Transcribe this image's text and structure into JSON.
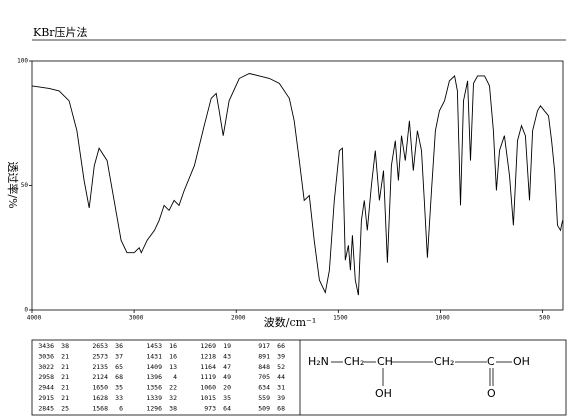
{
  "header": {
    "title": "KBr压片法"
  },
  "chart_data": {
    "type": "line",
    "xlabel": "波数/cm⁻¹",
    "ylabel": "透过率/%",
    "xlim": [
      4000,
      400
    ],
    "x_scale_break": 2000,
    "x_scale_ratio": 2,
    "xticks": [
      4000,
      3000,
      2000,
      1500,
      1000,
      500
    ],
    "ylim": [
      0,
      100
    ],
    "yticks": [
      0,
      50,
      100
    ],
    "color": "#000000",
    "x": [
      4000,
      3833,
      3735,
      3637,
      3560,
      3490,
      3440,
      3390,
      3343,
      3265,
      3196,
      3127,
      3070,
      3000,
      2950,
      2930,
      2873,
      2800,
      2755,
      2706,
      2657,
      2608,
      2560,
      2510,
      2410,
      2314,
      2245,
      2196,
      2167,
      2128,
      2070,
      1985,
      1936,
      1887,
      1838,
      1789,
      1740,
      1716,
      1691,
      1667,
      1642,
      1618,
      1593,
      1564,
      1544,
      1520,
      1495,
      1480,
      1466,
      1451,
      1441,
      1431,
      1417,
      1402,
      1387,
      1373,
      1358,
      1338,
      1319,
      1299,
      1279,
      1260,
      1240,
      1221,
      1206,
      1191,
      1172,
      1152,
      1133,
      1113,
      1093,
      1079,
      1064,
      1044,
      1025,
      1005,
      980,
      956,
      931,
      917,
      902,
      887,
      867,
      853,
      838,
      818,
      784,
      760,
      741,
      726,
      711,
      687,
      662,
      643,
      623,
      603,
      584,
      564,
      549,
      525,
      510,
      491,
      471,
      456,
      441,
      427,
      412,
      402
    ],
    "values": [
      90,
      89,
      88,
      84,
      72,
      52,
      41,
      58,
      65,
      60,
      44,
      28,
      23,
      23,
      25,
      23,
      28,
      32,
      36,
      42,
      40,
      44,
      42,
      48,
      58,
      74,
      85,
      87,
      80,
      70,
      84,
      93,
      95,
      94,
      93,
      91,
      85,
      76,
      60,
      44,
      46,
      28,
      12,
      7,
      16,
      44,
      64,
      65,
      20,
      26,
      16,
      30,
      12,
      6,
      36,
      44,
      32,
      50,
      64,
      44,
      56,
      19,
      58,
      68,
      52,
      70,
      60,
      76,
      56,
      72,
      64,
      44,
      21,
      48,
      72,
      80,
      84,
      92,
      94,
      88,
      42,
      84,
      92,
      60,
      91,
      94,
      94,
      90,
      72,
      48,
      64,
      70,
      54,
      34,
      68,
      74,
      70,
      44,
      72,
      80,
      82,
      80,
      78,
      68,
      56,
      34,
      32,
      36
    ]
  },
  "peak_table": {
    "groups": [
      [
        [
          3436,
          38
        ],
        [
          3036,
          21
        ],
        [
          3022,
          21
        ],
        [
          2958,
          21
        ],
        [
          2944,
          21
        ],
        [
          2915,
          21
        ],
        [
          2845,
          25
        ]
      ],
      [
        [
          2653,
          36
        ],
        [
          2573,
          37
        ],
        [
          2135,
          65
        ],
        [
          2124,
          68
        ],
        [
          1650,
          35
        ],
        [
          1628,
          33
        ],
        [
          1568,
          6
        ]
      ],
      [
        [
          1453,
          16
        ],
        [
          1431,
          16
        ],
        [
          1409,
          13
        ],
        [
          1396,
          4
        ],
        [
          1356,
          22
        ],
        [
          1339,
          32
        ],
        [
          1296,
          38
        ]
      ],
      [
        [
          1269,
          19
        ],
        [
          1218,
          43
        ],
        [
          1164,
          47
        ],
        [
          1119,
          49
        ],
        [
          1060,
          20
        ],
        [
          1015,
          35
        ],
        [
          973,
          64
        ]
      ],
      [
        [
          917,
          66
        ],
        [
          891,
          39
        ],
        [
          848,
          52
        ],
        [
          705,
          44
        ],
        [
          634,
          31
        ],
        [
          559,
          39
        ],
        [
          509,
          68
        ]
      ]
    ]
  },
  "structure": {
    "atoms": [
      "H₂N",
      "CH₂",
      "CH",
      "CH₂",
      "C",
      "OH",
      "OH",
      "O"
    ]
  }
}
